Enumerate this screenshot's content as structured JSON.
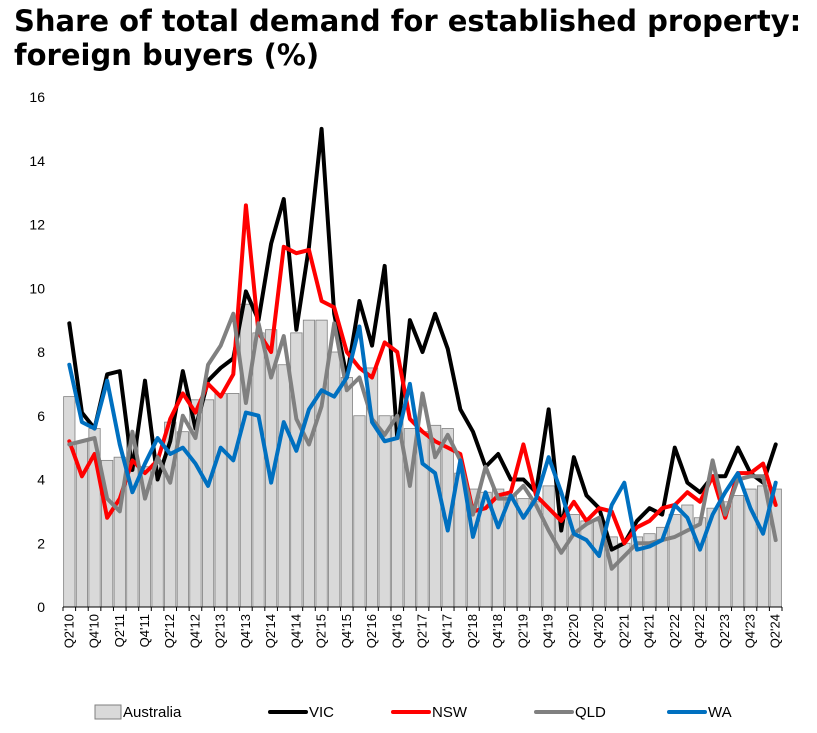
{
  "header": {
    "title_line1": "Share of total demand for established property:",
    "title_line2": "foreign buyers (%)"
  },
  "chart_data": {
    "type": "bar+line",
    "title": "Share of total demand for established property: foreign buyers (%)",
    "xlabel": "",
    "ylabel": "",
    "ylim": [
      0,
      16
    ],
    "yticks": [
      0,
      2,
      4,
      6,
      8,
      10,
      12,
      14,
      16
    ],
    "grid": false,
    "legend_position": "bottom",
    "x": [
      "Q2'10",
      "Q3'10",
      "Q4'10",
      "Q1'11",
      "Q2'11",
      "Q3'11",
      "Q4'11",
      "Q1'12",
      "Q2'12",
      "Q3'12",
      "Q4'12",
      "Q1'13",
      "Q2'13",
      "Q3'13",
      "Q4'13",
      "Q1'14",
      "Q2'14",
      "Q3'14",
      "Q4'14",
      "Q1'15",
      "Q2'15",
      "Q3'15",
      "Q4'15",
      "Q1'16",
      "Q2'16",
      "Q3'16",
      "Q4'16",
      "Q1'17",
      "Q2'17",
      "Q3'17",
      "Q4'17",
      "Q1'18",
      "Q2'18",
      "Q3'18",
      "Q4'18",
      "Q1'19",
      "Q2'19",
      "Q3'19",
      "Q4'19",
      "Q1'20",
      "Q2'20",
      "Q3'20",
      "Q4'20",
      "Q1'21",
      "Q2'21",
      "Q3'21",
      "Q4'21",
      "Q1'22",
      "Q2'22",
      "Q3'22",
      "Q4'22",
      "Q1'23",
      "Q2'23",
      "Q3'23",
      "Q4'23",
      "Q1'24",
      "Q2'24"
    ],
    "x_tick_labels": [
      "Q2'10",
      "Q4'10",
      "Q2'11",
      "Q4'11",
      "Q2'12",
      "Q4'12",
      "Q2'13",
      "Q4'13",
      "Q2'14",
      "Q4'14",
      "Q2'15",
      "Q4'15",
      "Q2'16",
      "Q4'16",
      "Q2'17",
      "Q4'17",
      "Q2'18",
      "Q4'18",
      "Q2'19",
      "Q4'19",
      "Q2'20",
      "Q4'20",
      "Q2'21",
      "Q4'21",
      "Q2'22",
      "Q4'22",
      "Q2'23",
      "Q4'23",
      "Q2'24"
    ],
    "series": [
      {
        "name": "Australia",
        "kind": "bar",
        "color": "#d9d9d9",
        "values": [
          6.6,
          5.2,
          5.6,
          4.6,
          4.7,
          5.3,
          4.4,
          4.5,
          5.8,
          5.5,
          6.5,
          6.5,
          6.7,
          6.7,
          9.5,
          8.6,
          8.7,
          7.6,
          8.6,
          9.0,
          9.0,
          8.0,
          7.2,
          6.0,
          7.5,
          6.0,
          6.0,
          5.6,
          5.5,
          5.7,
          5.6,
          4.2,
          3.7,
          3.6,
          3.7,
          3.5,
          3.4,
          3.3,
          3.8,
          2.9,
          2.9,
          2.7,
          2.7,
          2.2,
          2.0,
          2.2,
          2.3,
          2.5,
          2.9,
          3.2,
          2.8,
          3.1,
          3.3,
          3.5,
          3.7,
          3.8,
          3.7
        ]
      },
      {
        "name": "VIC",
        "kind": "line",
        "color": "#000000",
        "values": [
          8.9,
          6.1,
          5.6,
          7.3,
          7.4,
          4.3,
          7.1,
          4.0,
          5.2,
          7.4,
          5.6,
          7.1,
          7.5,
          7.8,
          9.9,
          9.0,
          11.4,
          12.8,
          8.7,
          11.3,
          15.0,
          9.2,
          7.2,
          9.6,
          8.2,
          10.7,
          5.3,
          9.0,
          8.0,
          9.2,
          8.1,
          6.2,
          5.5,
          4.4,
          4.8,
          4.0,
          4.0,
          3.6,
          6.2,
          2.4,
          4.7,
          3.5,
          3.1,
          1.8,
          2.0,
          2.7,
          3.1,
          2.9,
          5.0,
          3.9,
          3.6,
          4.1,
          4.1,
          5.0,
          4.2,
          3.9,
          5.1
        ]
      },
      {
        "name": "NSW",
        "kind": "line",
        "color": "#ff0000",
        "values": [
          5.2,
          4.1,
          4.8,
          2.8,
          3.4,
          4.6,
          4.2,
          4.6,
          5.9,
          6.7,
          6.1,
          7.0,
          6.6,
          7.3,
          12.6,
          8.6,
          8.0,
          11.3,
          11.1,
          11.2,
          9.6,
          9.4,
          8.0,
          7.5,
          7.2,
          8.3,
          8.0,
          5.9,
          5.5,
          5.2,
          5.0,
          4.8,
          3.0,
          3.1,
          3.5,
          3.6,
          5.1,
          3.5,
          3.1,
          2.7,
          3.3,
          2.7,
          3.1,
          3.0,
          2.0,
          2.5,
          2.7,
          3.1,
          3.2,
          3.6,
          3.3,
          4.1,
          2.8,
          4.2,
          4.2,
          4.5,
          3.2
        ]
      },
      {
        "name": "QLD",
        "kind": "line",
        "color": "#808080",
        "values": [
          5.1,
          5.2,
          5.3,
          3.4,
          3.0,
          5.5,
          3.4,
          4.7,
          3.9,
          6.0,
          5.3,
          7.6,
          8.2,
          9.2,
          6.4,
          8.9,
          7.2,
          8.5,
          5.9,
          5.1,
          6.3,
          8.9,
          6.8,
          7.2,
          5.9,
          5.4,
          6.0,
          3.8,
          6.7,
          4.7,
          5.4,
          4.6,
          2.9,
          4.4,
          3.4,
          3.4,
          3.8,
          3.2,
          2.4,
          1.7,
          2.3,
          2.6,
          2.8,
          1.2,
          1.6,
          2.0,
          2.0,
          2.1,
          2.2,
          2.4,
          2.6,
          4.6,
          2.9,
          4.0,
          4.1,
          4.1,
          2.1
        ]
      },
      {
        "name": "WA",
        "kind": "line",
        "color": "#0070c0",
        "values": [
          7.6,
          5.8,
          5.6,
          7.1,
          5.1,
          3.6,
          4.5,
          5.3,
          4.8,
          5.0,
          4.5,
          3.8,
          5.0,
          4.6,
          6.1,
          6.0,
          3.9,
          5.8,
          4.9,
          6.2,
          6.8,
          6.6,
          7.2,
          8.8,
          5.8,
          5.2,
          5.3,
          7.0,
          4.5,
          4.2,
          2.4,
          4.6,
          2.2,
          3.6,
          2.5,
          3.5,
          2.8,
          3.4,
          4.7,
          3.6,
          2.3,
          2.1,
          1.6,
          3.2,
          3.9,
          1.8,
          1.9,
          2.1,
          3.2,
          2.8,
          1.8,
          2.9,
          3.6,
          4.2,
          3.1,
          2.3,
          3.9
        ]
      }
    ],
    "legend": [
      "Australia",
      "VIC",
      "NSW",
      "QLD",
      "WA"
    ]
  }
}
